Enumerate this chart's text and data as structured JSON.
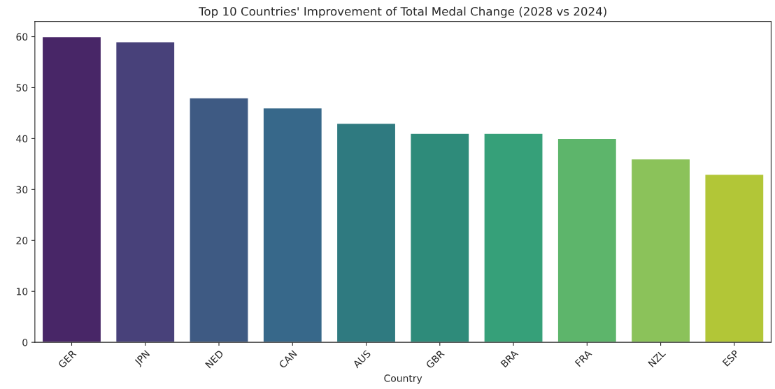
{
  "chart_data": {
    "type": "bar",
    "title": "Top 10 Countries' Improvement of Total Medal Change (2028 vs 2024)",
    "xlabel": "Country",
    "categories": [
      "GER",
      "JPN",
      "NED",
      "CAN",
      "AUS",
      "GBR",
      "BRA",
      "FRA",
      "NZL",
      "ESP"
    ],
    "values": [
      60,
      59,
      48,
      46,
      43,
      41,
      41,
      40,
      36,
      33
    ],
    "colors": [
      "#482667",
      "#48417a",
      "#3e5a83",
      "#37688a",
      "#2f7a80",
      "#2e8b7a",
      "#36a079",
      "#5db56b",
      "#8bc25a",
      "#b2c637"
    ],
    "ylim": [
      0,
      63
    ],
    "yticks": [
      0,
      10,
      20,
      30,
      40,
      50,
      60
    ],
    "grid": false,
    "legend": false
  }
}
